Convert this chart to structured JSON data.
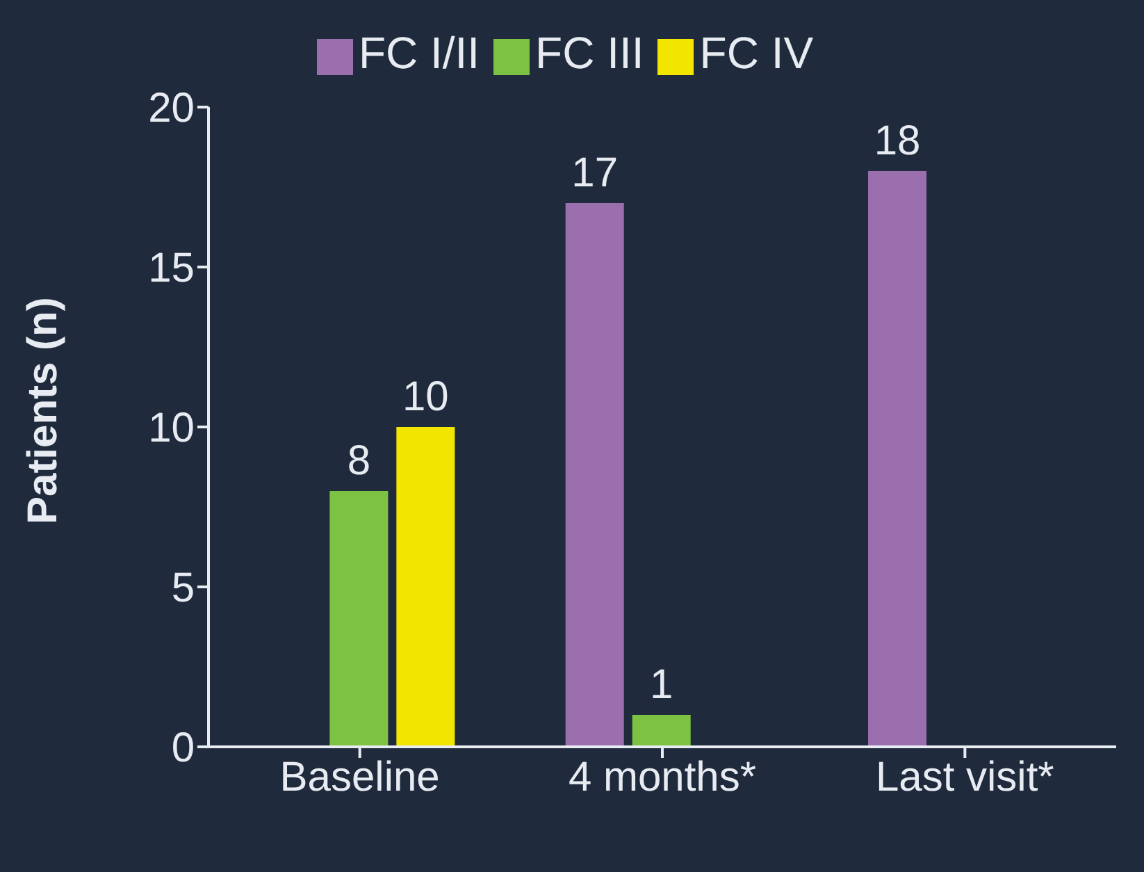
{
  "chart_data": {
    "type": "bar",
    "ylabel": "Patients (n)",
    "categories": [
      "Baseline",
      "4 months*",
      "Last visit*"
    ],
    "series": [
      {
        "name": "FC I/II",
        "color": "#9b6fae",
        "values": [
          0,
          17,
          18
        ],
        "value_labels": [
          null,
          "17",
          "18"
        ]
      },
      {
        "name": "FC III",
        "color": "#7dc242",
        "values": [
          8,
          1,
          0
        ],
        "value_labels": [
          "8",
          "1",
          null
        ]
      },
      {
        "name": "FC IV",
        "color": "#f2e600",
        "values": [
          10,
          0,
          0
        ],
        "value_labels": [
          "10",
          null,
          null
        ]
      }
    ],
    "ylim": [
      0,
      20
    ],
    "yticks": [
      0,
      5,
      10,
      15,
      20
    ],
    "grid": false,
    "legend": "top"
  }
}
